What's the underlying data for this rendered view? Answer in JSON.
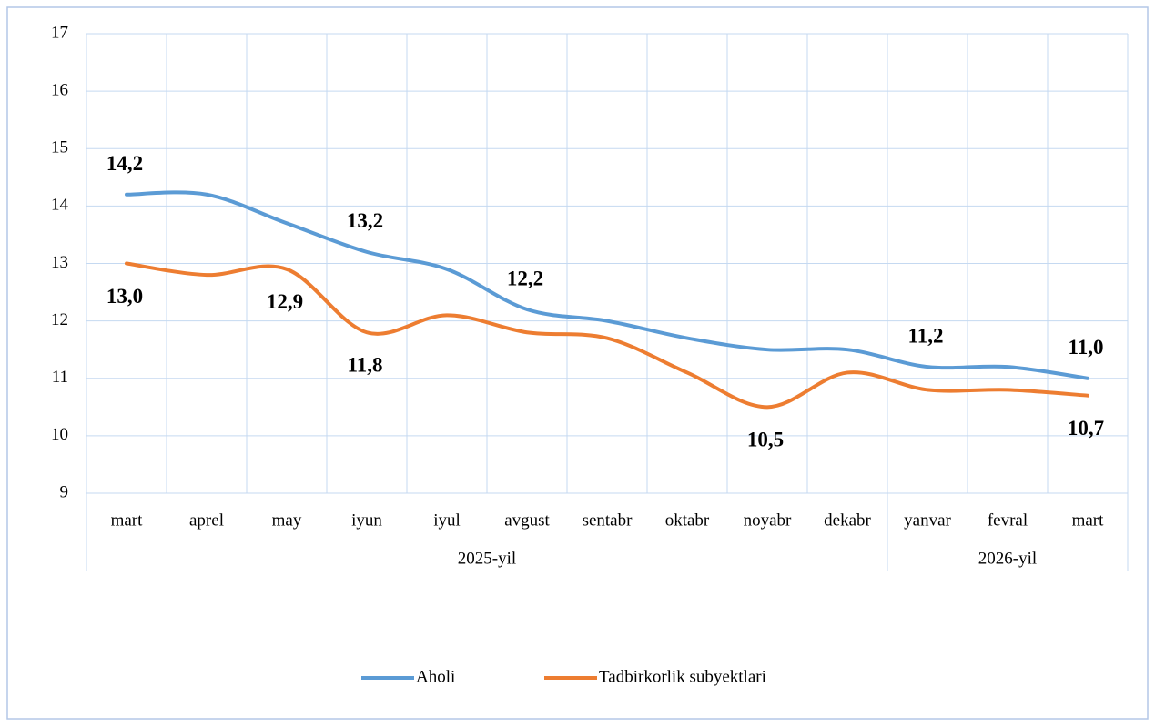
{
  "chart_data": {
    "type": "line",
    "categories": [
      "mart",
      "aprel",
      "may",
      "iyun",
      "iyul",
      "avgust",
      "sentabr",
      "oktabr",
      "noyabr",
      "dekabr",
      "yanvar",
      "fevral",
      "mart"
    ],
    "groups": [
      {
        "label": "2025-yil",
        "count": 10
      },
      {
        "label": "2026-yil",
        "count": 3
      }
    ],
    "series": [
      {
        "name": "Aholi",
        "color": "#5b9bd5",
        "values": [
          14.2,
          14.2,
          13.7,
          13.2,
          12.9,
          12.2,
          12.0,
          11.7,
          11.5,
          11.5,
          11.2,
          11.2,
          11.0
        ],
        "value_labels": [
          "14,2",
          null,
          null,
          "13,2",
          null,
          "12,2",
          null,
          null,
          null,
          null,
          "11,2",
          null,
          "11,0"
        ]
      },
      {
        "name": "Tadbirkorlik subyektlari",
        "color": "#ed7d31",
        "values": [
          13.0,
          12.8,
          12.9,
          11.8,
          12.1,
          11.8,
          11.7,
          11.1,
          10.5,
          11.1,
          10.8,
          10.8,
          10.7
        ],
        "value_labels": [
          "13,0",
          null,
          "12,9",
          "11,8",
          null,
          null,
          null,
          null,
          "10,5",
          null,
          null,
          null,
          "10,7"
        ]
      }
    ],
    "ylim": [
      9,
      17
    ],
    "yticks": [
      9,
      10,
      11,
      12,
      13,
      14,
      15,
      16,
      17
    ],
    "grid": true,
    "legend": "bottom"
  }
}
